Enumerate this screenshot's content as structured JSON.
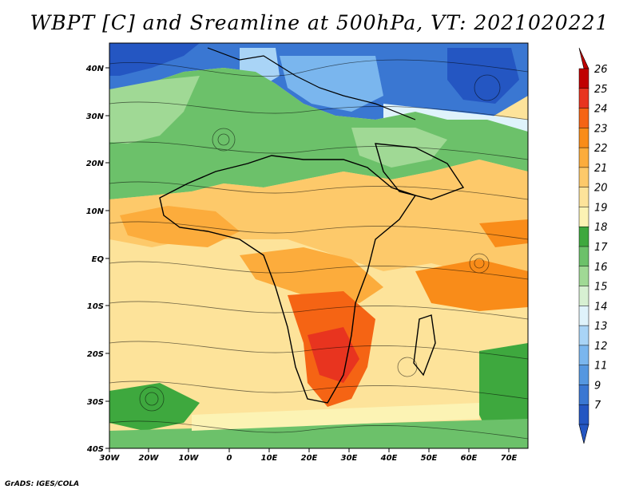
{
  "title": "WBPT [C] and Sreamline at 500hPa, VT: 2021020221",
  "credit": "GrADS: IGES/COLA",
  "map": {
    "lon_ticks": [
      "30W",
      "20W",
      "10W",
      "0",
      "10E",
      "20E",
      "30E",
      "40E",
      "50E",
      "60E",
      "70E"
    ],
    "lat_ticks": [
      "40N",
      "30N",
      "20N",
      "10N",
      "EQ",
      "10S",
      "20S",
      "30S",
      "40S"
    ]
  },
  "colorbar": {
    "labels": [
      "26",
      "25",
      "24",
      "23",
      "22",
      "21",
      "20",
      "19",
      "18",
      "17",
      "16",
      "15",
      "14",
      "13",
      "12",
      "11",
      "9",
      "7"
    ],
    "colors": [
      "#c00000",
      "#e8341f",
      "#f56414",
      "#f98c19",
      "#fcac3c",
      "#fdc96a",
      "#fde39a",
      "#fcf3b4",
      "#3ea83e",
      "#6cc16a",
      "#a0d995",
      "#d7f0d2",
      "#dff3fb",
      "#a9d4f6",
      "#7ab6ee",
      "#5597e0",
      "#3a77d2",
      "#2456c2"
    ]
  }
}
